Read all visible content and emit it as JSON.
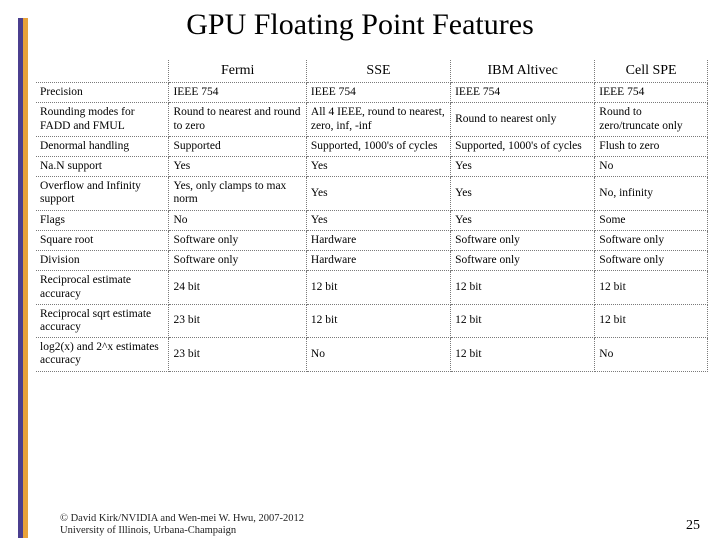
{
  "title": "GPU Floating Point Features",
  "columns": [
    "",
    "Fermi",
    "SSE",
    "IBM Altivec",
    "Cell SPE"
  ],
  "rows": [
    [
      "Precision",
      "IEEE 754",
      "IEEE 754",
      "IEEE 754",
      "IEEE 754"
    ],
    [
      "Rounding modes for FADD and FMUL",
      "Round to nearest and round to zero",
      "All 4 IEEE, round to nearest, zero, inf, -inf",
      "Round to nearest only",
      "Round to zero/truncate only"
    ],
    [
      "Denormal handling",
      "Supported",
      "Supported, 1000's of cycles",
      "Supported, 1000's of cycles",
      "Flush to zero"
    ],
    [
      "Na.N support",
      "Yes",
      "Yes",
      "Yes",
      "No"
    ],
    [
      "Overflow and Infinity support",
      "Yes, only clamps to max norm",
      "Yes",
      "Yes",
      "No, infinity"
    ],
    [
      "Flags",
      "No",
      "Yes",
      "Yes",
      "Some"
    ],
    [
      "Square root",
      "Software only",
      "Hardware",
      "Software only",
      "Software only"
    ],
    [
      "Division",
      "Software only",
      "Hardware",
      "Software only",
      "Software only"
    ],
    [
      "Reciprocal estimate accuracy",
      "24 bit",
      "12 bit",
      "12 bit",
      "12 bit"
    ],
    [
      "Reciprocal sqrt estimate accuracy",
      "23 bit",
      "12 bit",
      "12 bit",
      "12 bit"
    ],
    [
      "log2(x) and 2^x estimates accuracy",
      "23 bit",
      "No",
      "12 bit",
      "No"
    ]
  ],
  "footer_line1": "© David Kirk/NVIDIA and Wen-mei W. Hwu, 2007-2012",
  "footer_line2": "University of Illinois, Urbana-Champaign",
  "page_number": "25",
  "accent_colors": {
    "purple": "#4b3f8f",
    "orange": "#e8a23a"
  }
}
